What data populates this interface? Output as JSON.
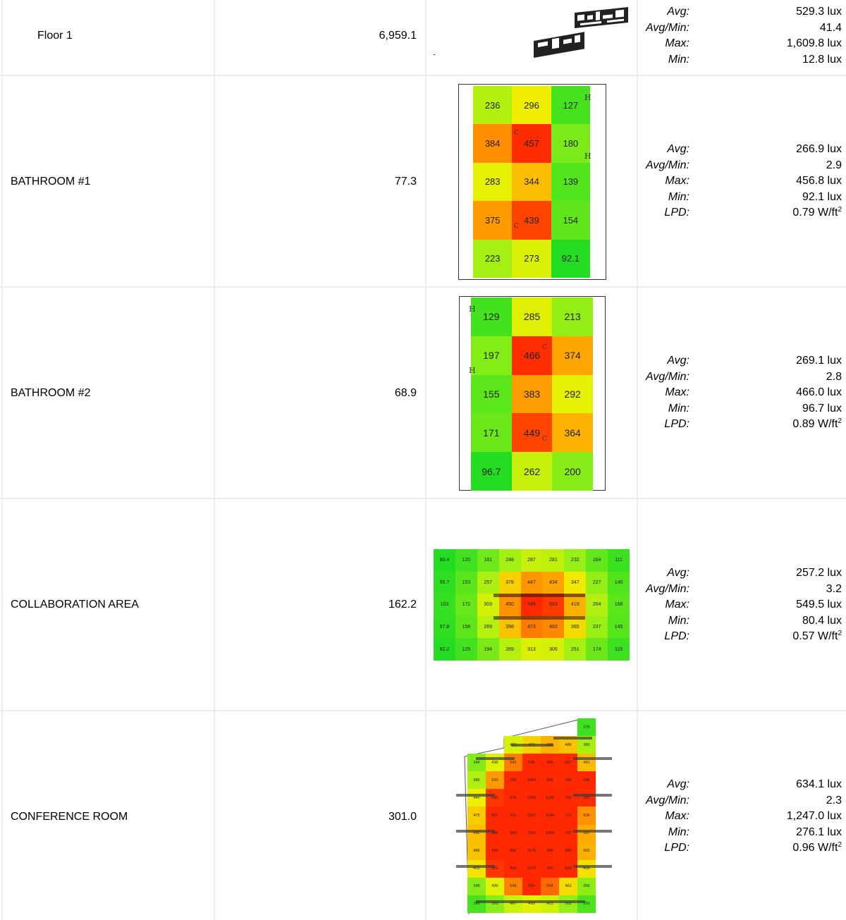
{
  "rows": [
    {
      "name": "Floor 1",
      "area": "6,959.1",
      "stats": [
        {
          "label": "Avg:",
          "value": "529.3 lux"
        },
        {
          "label": "Avg/Min:",
          "value": "41.4"
        },
        {
          "label": "Max:",
          "value": "1,609.8 lux"
        },
        {
          "label": "Min:",
          "value": "12.8 lux"
        }
      ]
    },
    {
      "name": "BATHROOM #1",
      "area": "77.3",
      "grid": [
        [
          "236",
          "296",
          "127"
        ],
        [
          "384",
          "457",
          "180"
        ],
        [
          "283",
          "344",
          "139"
        ],
        [
          "375",
          "439",
          "154"
        ],
        [
          "223",
          "273",
          "92.1"
        ]
      ],
      "stats": [
        {
          "label": "Avg:",
          "value": "266.9 lux"
        },
        {
          "label": "Avg/Min:",
          "value": "2.9"
        },
        {
          "label": "Max:",
          "value": "456.8 lux"
        },
        {
          "label": "Min:",
          "value": "92.1 lux"
        },
        {
          "label": "LPD:",
          "value": "0.79 W/ft",
          "sup": "2"
        }
      ]
    },
    {
      "name": "BATHROOM #2",
      "area": "68.9",
      "grid": [
        [
          "129",
          "285",
          "213"
        ],
        [
          "197",
          "466",
          "374"
        ],
        [
          "155",
          "383",
          "292"
        ],
        [
          "171",
          "449",
          "364"
        ],
        [
          "96.7",
          "262",
          "200"
        ]
      ],
      "stats": [
        {
          "label": "Avg:",
          "value": "269.1 lux"
        },
        {
          "label": "Avg/Min:",
          "value": "2.8"
        },
        {
          "label": "Max:",
          "value": "466.0 lux"
        },
        {
          "label": "Min:",
          "value": "96.7 lux"
        },
        {
          "label": "LPD:",
          "value": "0.89 W/ft",
          "sup": "2"
        }
      ]
    },
    {
      "name": "COLLABORATION AREA",
      "area": "162.2",
      "grid": [
        [
          "80.4",
          "120",
          "181",
          "248",
          "287",
          "281",
          "232",
          "164",
          "111"
        ],
        [
          "95.7",
          "153",
          "257",
          "378",
          "447",
          "434",
          "347",
          "227",
          "140"
        ],
        [
          "103",
          "172",
          "303",
          "450",
          "549",
          "533",
          "419",
          "264",
          "156"
        ],
        [
          "97.8",
          "158",
          "269",
          "398",
          "473",
          "460",
          "365",
          "237",
          "145"
        ],
        [
          "82.2",
          "125",
          "194",
          "269",
          "313",
          "306",
          "251",
          "174",
          "115"
        ]
      ],
      "stats": [
        {
          "label": "Avg:",
          "value": "257.2 lux"
        },
        {
          "label": "Avg/Min:",
          "value": "3.2"
        },
        {
          "label": "Max:",
          "value": "549.5 lux"
        },
        {
          "label": "Min:",
          "value": "80.4 lux"
        },
        {
          "label": "LPD:",
          "value": "0.57 W/ft",
          "sup": "2"
        }
      ]
    },
    {
      "name": "CONFERENCE ROOM",
      "area": "301.0",
      "grid": [
        [
          "",
          "",
          "",
          "",
          "",
          "",
          "276"
        ],
        [
          "",
          "",
          "421",
          "471",
          "499",
          "486",
          "380"
        ],
        [
          "344",
          "430",
          "541",
          "648",
          "663",
          "607",
          "491"
        ],
        [
          "386",
          "520",
          "704",
          "1004",
          "896",
          "790",
          "636"
        ],
        [
          "440",
          "590",
          "876",
          "1206",
          "1039",
          "732",
          "597"
        ],
        [
          "475",
          "637",
          "911",
          "1247",
          "1044",
          "727",
          "526"
        ],
        [
          "490",
          "646",
          "889",
          "1191",
          "1004",
          "707",
          "507"
        ],
        [
          "486",
          "640",
          "862",
          "1178",
          "986",
          "680",
          "502"
        ],
        [
          "453",
          "591",
          "816",
          "1079",
          "900",
          "629",
          "456"
        ],
        [
          "348",
          "430",
          "536",
          "600",
          "554",
          "461",
          "356"
        ],
        [
          "286",
          "350",
          "407",
          "430",
          "413",
          "362",
          "293"
        ]
      ],
      "stats": [
        {
          "label": "Avg:",
          "value": "634.1 lux"
        },
        {
          "label": "Avg/Min:",
          "value": "2.3"
        },
        {
          "label": "Max:",
          "value": "1,247.0 lux"
        },
        {
          "label": "Min:",
          "value": "276.1 lux"
        },
        {
          "label": "LPD:",
          "value": "0.96 W/ft",
          "sup": "2"
        }
      ]
    }
  ]
}
